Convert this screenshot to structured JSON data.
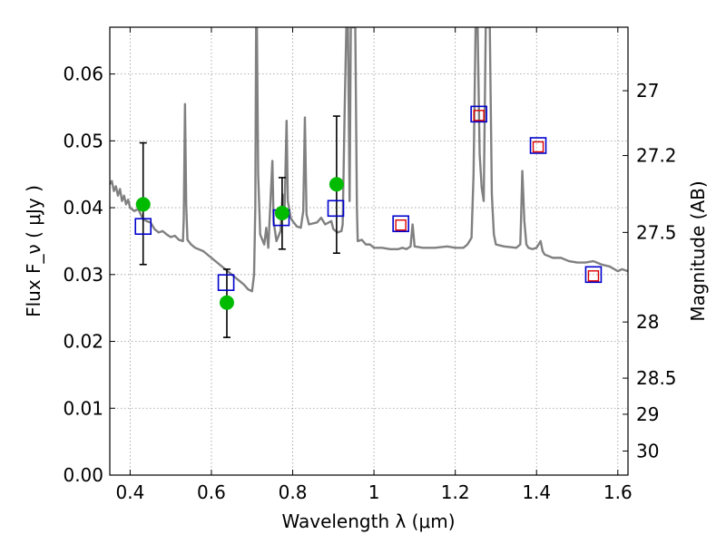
{
  "chart_data": {
    "type": "scatter",
    "title": "",
    "xlabel": "Wavelength  λ (μm)",
    "ylabel": "Flux  F_ν  ( μJy )",
    "y2label": "Magnitude (AB)",
    "xlim": [
      0.35,
      1.625
    ],
    "ylim": [
      0.0,
      0.067
    ],
    "grid": true,
    "legend": "none",
    "x_ticks": [
      0.4,
      0.6,
      0.8,
      1.0,
      1.2,
      1.4,
      1.6
    ],
    "x_tick_labels": [
      "0.4",
      "0.6",
      "0.8",
      "1",
      "1.2",
      "1.4",
      "1.6"
    ],
    "y_ticks": [
      0.0,
      0.01,
      0.02,
      0.03,
      0.04,
      0.05,
      0.06
    ],
    "y_tick_labels": [
      "0.00",
      "0.01",
      "0.02",
      "0.03",
      "0.04",
      "0.05",
      "0.06"
    ],
    "y2_ticks": [
      {
        "flux": 0.0575,
        "label": "27"
      },
      {
        "flux": 0.0478,
        "label": "27.2"
      },
      {
        "flux": 0.0363,
        "label": "27.5"
      },
      {
        "flux": 0.0229,
        "label": "28"
      },
      {
        "flux": 0.0145,
        "label": "28.5"
      },
      {
        "flux": 0.0091,
        "label": "29"
      },
      {
        "flux": 0.0036,
        "label": "30"
      }
    ],
    "colors": {
      "model": "#808080",
      "observed": "#00bb00",
      "model_band": "#0000cc",
      "predicted_inner": "#dd0000",
      "error_bar": "#000000",
      "grid": "#999999"
    },
    "series": [
      {
        "type": "line",
        "points": [
          [
            0.35,
            0.0435
          ],
          [
            0.355,
            0.044
          ],
          [
            0.36,
            0.0425
          ],
          [
            0.365,
            0.0432
          ],
          [
            0.37,
            0.0418
          ],
          [
            0.375,
            0.0428
          ],
          [
            0.38,
            0.041
          ],
          [
            0.385,
            0.0418
          ],
          [
            0.39,
            0.0405
          ],
          [
            0.395,
            0.0412
          ],
          [
            0.4,
            0.04
          ],
          [
            0.41,
            0.0395
          ],
          [
            0.42,
            0.0398
          ],
          [
            0.43,
            0.0385
          ],
          [
            0.44,
            0.038
          ],
          [
            0.45,
            0.0378
          ],
          [
            0.46,
            0.0368
          ],
          [
            0.47,
            0.0363
          ],
          [
            0.48,
            0.0365
          ],
          [
            0.49,
            0.036
          ],
          [
            0.5,
            0.0356
          ],
          [
            0.51,
            0.0358
          ],
          [
            0.52,
            0.0352
          ],
          [
            0.53,
            0.035
          ],
          [
            0.532,
            0.0385
          ],
          [
            0.535,
            0.0555
          ],
          [
            0.538,
            0.0405
          ],
          [
            0.541,
            0.0352
          ],
          [
            0.55,
            0.0345
          ],
          [
            0.56,
            0.034
          ],
          [
            0.58,
            0.0335
          ],
          [
            0.6,
            0.0325
          ],
          [
            0.62,
            0.0315
          ],
          [
            0.63,
            0.031
          ],
          [
            0.64,
            0.0305
          ],
          [
            0.65,
            0.03
          ],
          [
            0.66,
            0.0295
          ],
          [
            0.67,
            0.029
          ],
          [
            0.68,
            0.0285
          ],
          [
            0.69,
            0.0278
          ],
          [
            0.7,
            0.0275
          ],
          [
            0.705,
            0.03
          ],
          [
            0.708,
            0.04
          ],
          [
            0.71,
            0.067
          ],
          [
            0.712,
            0.067
          ],
          [
            0.715,
            0.045
          ],
          [
            0.72,
            0.036
          ],
          [
            0.73,
            0.0345
          ],
          [
            0.735,
            0.037
          ],
          [
            0.74,
            0.034
          ],
          [
            0.75,
            0.047
          ],
          [
            0.753,
            0.038
          ],
          [
            0.76,
            0.035
          ],
          [
            0.77,
            0.0365
          ],
          [
            0.775,
            0.042
          ],
          [
            0.78,
            0.0395
          ],
          [
            0.785,
            0.053
          ],
          [
            0.788,
            0.041
          ],
          [
            0.795,
            0.0385
          ],
          [
            0.8,
            0.038
          ],
          [
            0.81,
            0.0372
          ],
          [
            0.82,
            0.037
          ],
          [
            0.826,
            0.0395
          ],
          [
            0.83,
            0.0535
          ],
          [
            0.834,
            0.039
          ],
          [
            0.84,
            0.0375
          ],
          [
            0.86,
            0.0378
          ],
          [
            0.87,
            0.0385
          ],
          [
            0.88,
            0.0375
          ],
          [
            0.895,
            0.038
          ],
          [
            0.9,
            0.0368
          ],
          [
            0.91,
            0.0363
          ],
          [
            0.92,
            0.0365
          ],
          [
            0.923,
            0.0375
          ],
          [
            0.928,
            0.055
          ],
          [
            0.932,
            0.067
          ],
          [
            0.936,
            0.067
          ],
          [
            0.94,
            0.041
          ],
          [
            0.943,
            0.067
          ],
          [
            0.946,
            0.067
          ],
          [
            0.95,
            0.067
          ],
          [
            0.954,
            0.067
          ],
          [
            0.958,
            0.04
          ],
          [
            0.96,
            0.035
          ],
          [
            0.97,
            0.0352
          ],
          [
            0.98,
            0.0345
          ],
          [
            0.99,
            0.0345
          ],
          [
            1.0,
            0.034
          ],
          [
            1.02,
            0.034
          ],
          [
            1.04,
            0.0338
          ],
          [
            1.06,
            0.0338
          ],
          [
            1.07,
            0.034
          ],
          [
            1.08,
            0.0338
          ],
          [
            1.085,
            0.034
          ],
          [
            1.09,
            0.0342
          ],
          [
            1.095,
            0.0375
          ],
          [
            1.1,
            0.0342
          ],
          [
            1.12,
            0.034
          ],
          [
            1.15,
            0.034
          ],
          [
            1.18,
            0.0342
          ],
          [
            1.2,
            0.034
          ],
          [
            1.22,
            0.034
          ],
          [
            1.23,
            0.0345
          ],
          [
            1.24,
            0.0355
          ],
          [
            1.245,
            0.045
          ],
          [
            1.25,
            0.067
          ],
          [
            1.255,
            0.067
          ],
          [
            1.26,
            0.048
          ],
          [
            1.265,
            0.043
          ],
          [
            1.27,
            0.041
          ],
          [
            1.275,
            0.067
          ],
          [
            1.28,
            0.067
          ],
          [
            1.285,
            0.067
          ],
          [
            1.29,
            0.042
          ],
          [
            1.295,
            0.036
          ],
          [
            1.3,
            0.0345
          ],
          [
            1.32,
            0.0342
          ],
          [
            1.35,
            0.034
          ],
          [
            1.36,
            0.0345
          ],
          [
            1.362,
            0.0385
          ],
          [
            1.365,
            0.0455
          ],
          [
            1.37,
            0.038
          ],
          [
            1.375,
            0.0345
          ],
          [
            1.38,
            0.034
          ],
          [
            1.39,
            0.0338
          ],
          [
            1.4,
            0.034
          ],
          [
            1.405,
            0.0345
          ],
          [
            1.41,
            0.035
          ],
          [
            1.415,
            0.0335
          ],
          [
            1.42,
            0.033
          ],
          [
            1.44,
            0.0325
          ],
          [
            1.46,
            0.0325
          ],
          [
            1.48,
            0.032
          ],
          [
            1.5,
            0.0318
          ],
          [
            1.52,
            0.0318
          ],
          [
            1.54,
            0.032
          ],
          [
            1.56,
            0.0315
          ],
          [
            1.58,
            0.0312
          ],
          [
            1.6,
            0.0305
          ],
          [
            1.61,
            0.0308
          ],
          [
            1.625,
            0.0305
          ]
        ]
      },
      {
        "type": "scatter",
        "points": [
          {
            "x": 0.432,
            "y": 0.0405,
            "yerr_low": 0.0315,
            "yerr_high": 0.0497
          },
          {
            "x": 0.638,
            "y": 0.0258,
            "yerr_low": 0.0206,
            "yerr_high": 0.0308
          },
          {
            "x": 0.774,
            "y": 0.0392,
            "yerr_low": 0.0338,
            "yerr_high": 0.0445
          },
          {
            "x": 0.908,
            "y": 0.0435,
            "yerr_low": 0.0332,
            "yerr_high": 0.0537
          }
        ]
      },
      {
        "type": "scatter",
        "marker": "open-square",
        "points": [
          [
            0.432,
            0.0372
          ],
          [
            0.636,
            0.0288
          ],
          [
            0.772,
            0.0385
          ],
          [
            0.906,
            0.0399
          ],
          [
            1.066,
            0.0376
          ],
          [
            1.258,
            0.054
          ],
          [
            1.404,
            0.0493
          ],
          [
            1.54,
            0.03
          ]
        ]
      },
      {
        "type": "scatter",
        "marker": "small-open-square",
        "points": [
          [
            1.066,
            0.0374
          ],
          [
            1.258,
            0.0538
          ],
          [
            1.404,
            0.0491
          ],
          [
            1.54,
            0.0298
          ]
        ]
      }
    ]
  }
}
